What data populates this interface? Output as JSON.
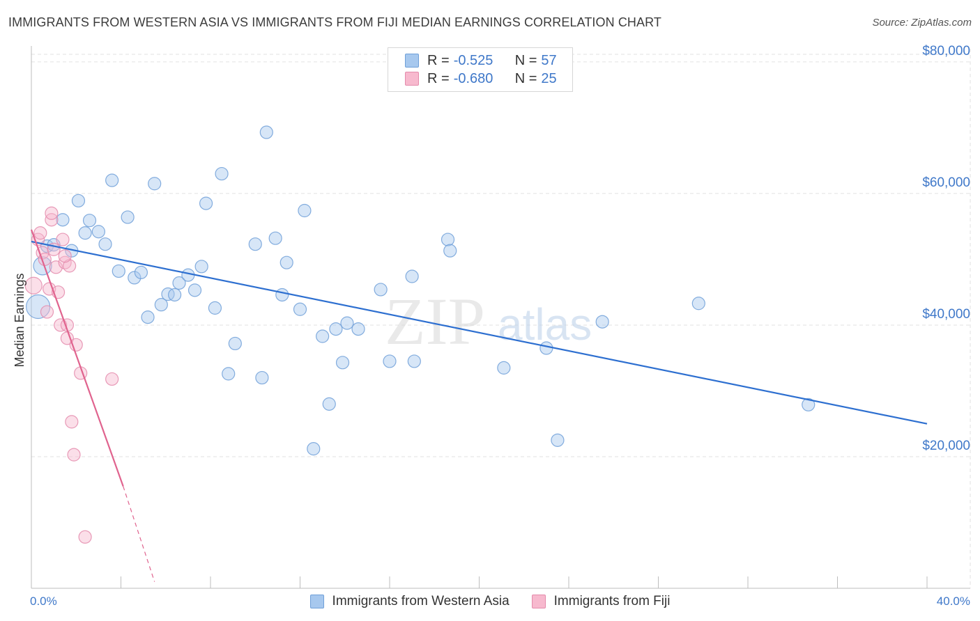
{
  "title": "IMMIGRANTS FROM WESTERN ASIA VS IMMIGRANTS FROM FIJI MEDIAN EARNINGS CORRELATION CHART",
  "source": "Source: ZipAtlas.com",
  "watermark": {
    "zip": "ZIP",
    "atlas": "atlas"
  },
  "stats": [
    {
      "r_label": "R =",
      "r_value": "-0.525",
      "n_label": "N =",
      "n_value": "57",
      "color": "#a7c8ee",
      "border": "#6f9fd8"
    },
    {
      "r_label": "R =",
      "r_value": "-0.680",
      "n_label": "N =",
      "n_value": "25",
      "color": "#f7b9ce",
      "border": "#e48aab"
    }
  ],
  "legend": [
    {
      "label": "Immigrants from Western Asia",
      "color": "#a7c8ee",
      "border": "#6f9fd8"
    },
    {
      "label": "Immigrants from Fiji",
      "color": "#f7b9ce",
      "border": "#e48aab"
    }
  ],
  "colors": {
    "blue_fill": "#a7c8ee",
    "blue_stroke": "#6f9fd8",
    "blue_line": "#2d6fd0",
    "pink_fill": "#f7b9ce",
    "pink_stroke": "#e48aab",
    "pink_line": "#e0638e",
    "grid": "#e2e2e2",
    "axis_label": "#3f78c9"
  },
  "chart_data": {
    "type": "scatter",
    "title": "IMMIGRANTS FROM WESTERN ASIA VS IMMIGRANTS FROM FIJI MEDIAN EARNINGS CORRELATION CHART",
    "xlabel": "",
    "ylabel": "Median Earnings",
    "xlim": [
      0,
      40
    ],
    "ylim": [
      0,
      80000
    ],
    "x_tick_labels": [
      "0.0%",
      "40.0%"
    ],
    "y_ticks": [
      20000,
      40000,
      60000,
      80000
    ],
    "y_tick_labels": [
      "$20,000",
      "$40,000",
      "$60,000",
      "$80,000"
    ],
    "grid": true,
    "legend_position": "bottom",
    "series": [
      {
        "name": "Immigrants from Western Asia",
        "color": "#a7c8ee",
        "points": [
          [
            0.3,
            42800
          ],
          [
            0.5,
            49000
          ],
          [
            0.7,
            52000
          ],
          [
            1.0,
            52200
          ],
          [
            1.4,
            56000
          ],
          [
            1.8,
            51300
          ],
          [
            2.1,
            58900
          ],
          [
            2.4,
            54000
          ],
          [
            2.6,
            55900
          ],
          [
            3.0,
            54200
          ],
          [
            3.3,
            52300
          ],
          [
            3.6,
            62000
          ],
          [
            3.9,
            48200
          ],
          [
            4.3,
            56400
          ],
          [
            4.6,
            47200
          ],
          [
            4.9,
            48000
          ],
          [
            5.2,
            41200
          ],
          [
            5.5,
            61500
          ],
          [
            5.8,
            43100
          ],
          [
            6.1,
            44700
          ],
          [
            6.4,
            44600
          ],
          [
            6.6,
            46400
          ],
          [
            7.0,
            47600
          ],
          [
            7.3,
            45300
          ],
          [
            7.6,
            48900
          ],
          [
            7.8,
            58500
          ],
          [
            8.2,
            42600
          ],
          [
            8.5,
            63000
          ],
          [
            8.8,
            32600
          ],
          [
            9.1,
            37200
          ],
          [
            10.0,
            52300
          ],
          [
            10.3,
            32000
          ],
          [
            10.5,
            69300
          ],
          [
            10.9,
            53200
          ],
          [
            11.2,
            44600
          ],
          [
            11.4,
            49500
          ],
          [
            12.0,
            42400
          ],
          [
            12.2,
            57400
          ],
          [
            12.6,
            21200
          ],
          [
            13.0,
            38300
          ],
          [
            13.3,
            28000
          ],
          [
            13.6,
            39400
          ],
          [
            13.9,
            34300
          ],
          [
            14.1,
            40300
          ],
          [
            14.6,
            39400
          ],
          [
            15.6,
            45400
          ],
          [
            16.0,
            34500
          ],
          [
            17.0,
            47400
          ],
          [
            17.1,
            34500
          ],
          [
            18.6,
            53000
          ],
          [
            18.7,
            51300
          ],
          [
            21.1,
            33500
          ],
          [
            23.0,
            36500
          ],
          [
            23.5,
            22500
          ],
          [
            25.5,
            40500
          ],
          [
            29.8,
            43300
          ],
          [
            34.7,
            27900
          ]
        ],
        "trend": {
          "x": [
            0,
            40
          ],
          "y": [
            52700,
            25000
          ]
        }
      },
      {
        "name": "Immigrants from Fiji",
        "color": "#f7b9ce",
        "points": [
          [
            0.1,
            46000
          ],
          [
            0.3,
            53000
          ],
          [
            0.4,
            54000
          ],
          [
            0.5,
            51000
          ],
          [
            0.6,
            50000
          ],
          [
            0.7,
            42000
          ],
          [
            0.8,
            45500
          ],
          [
            0.9,
            56000
          ],
          [
            0.9,
            57000
          ],
          [
            1.0,
            51500
          ],
          [
            1.1,
            48800
          ],
          [
            1.2,
            45000
          ],
          [
            1.3,
            40000
          ],
          [
            1.4,
            53000
          ],
          [
            1.5,
            49500
          ],
          [
            1.6,
            38000
          ],
          [
            1.6,
            40000
          ],
          [
            1.7,
            49000
          ],
          [
            1.8,
            25300
          ],
          [
            1.9,
            20300
          ],
          [
            2.0,
            37000
          ],
          [
            2.2,
            32700
          ],
          [
            2.4,
            7800
          ],
          [
            3.6,
            31800
          ],
          [
            1.5,
            50500
          ]
        ],
        "trend": {
          "x": [
            0,
            4.1
          ],
          "y": [
            54500,
            15500
          ]
        },
        "trend_dashed": {
          "x": [
            4.1,
            5.5
          ],
          "y": [
            15500,
            1000
          ]
        }
      }
    ]
  }
}
